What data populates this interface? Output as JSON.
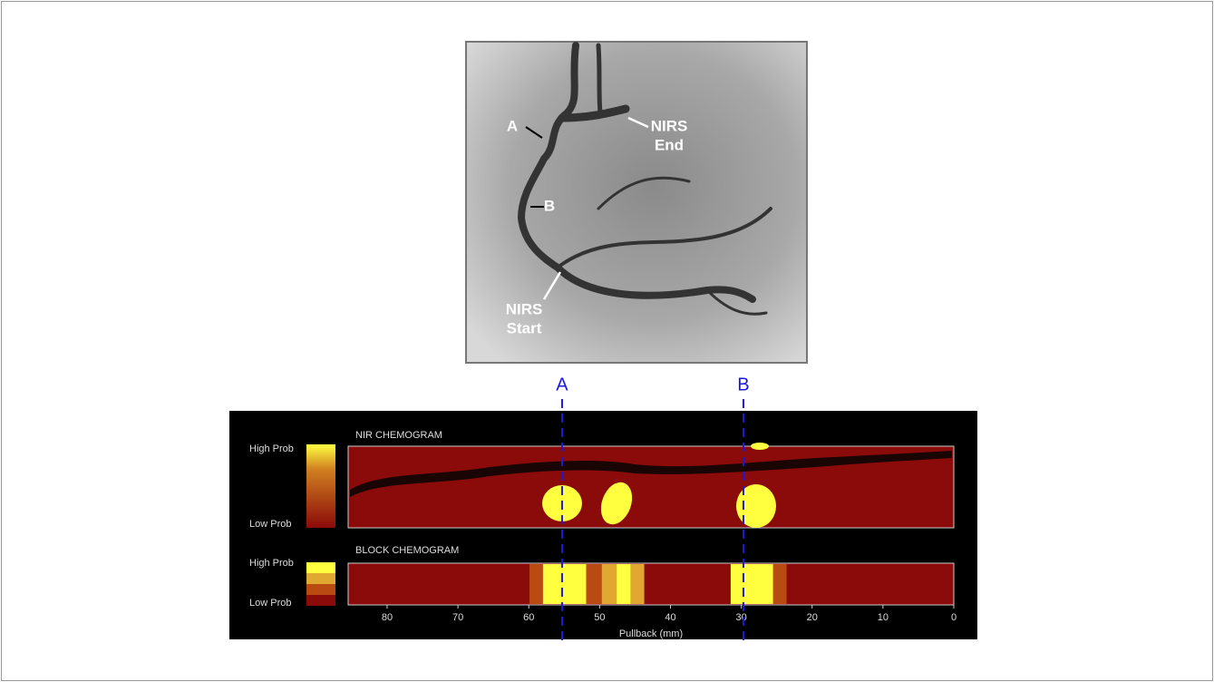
{
  "angiogram": {
    "labels": [
      {
        "lines": [
          "A"
        ]
      },
      {
        "lines": [
          "B"
        ]
      },
      {
        "lines": [
          "NIRS",
          "End"
        ]
      },
      {
        "lines": [
          "NIRS",
          "Start"
        ]
      }
    ]
  },
  "chart_data": {
    "type": "chemogram",
    "panels": [
      "NIR CHEMOGRAM",
      "BLOCK CHEMOGRAM"
    ],
    "legend_labels": [
      "High Prob",
      "Low Prob"
    ],
    "xlabel": "Pullback (mm)",
    "xlim": [
      85.5,
      0
    ],
    "xticks": [
      80,
      70,
      60,
      50,
      40,
      30,
      20,
      10,
      0
    ],
    "markers": [
      {
        "label": "A",
        "x": 55.3
      },
      {
        "label": "B",
        "x": 29.7
      }
    ],
    "marker_color": "#1a1adc",
    "background_color": "#8b0a0a",
    "level_colors": [
      "#8b0a0a",
      "#b84a12",
      "#e0a830",
      "#ffff40"
    ],
    "blocks": [
      {
        "start": 59.9,
        "end": 58.0,
        "level": 2
      },
      {
        "start": 58.0,
        "end": 51.9,
        "level": 4
      },
      {
        "start": 51.9,
        "end": 49.7,
        "level": 2
      },
      {
        "start": 49.7,
        "end": 47.6,
        "level": 3
      },
      {
        "start": 47.6,
        "end": 45.6,
        "level": 4
      },
      {
        "start": 45.6,
        "end": 43.7,
        "level": 3
      },
      {
        "start": 31.5,
        "end": 25.5,
        "level": 4
      },
      {
        "start": 25.5,
        "end": 23.6,
        "level": 2
      }
    ]
  }
}
